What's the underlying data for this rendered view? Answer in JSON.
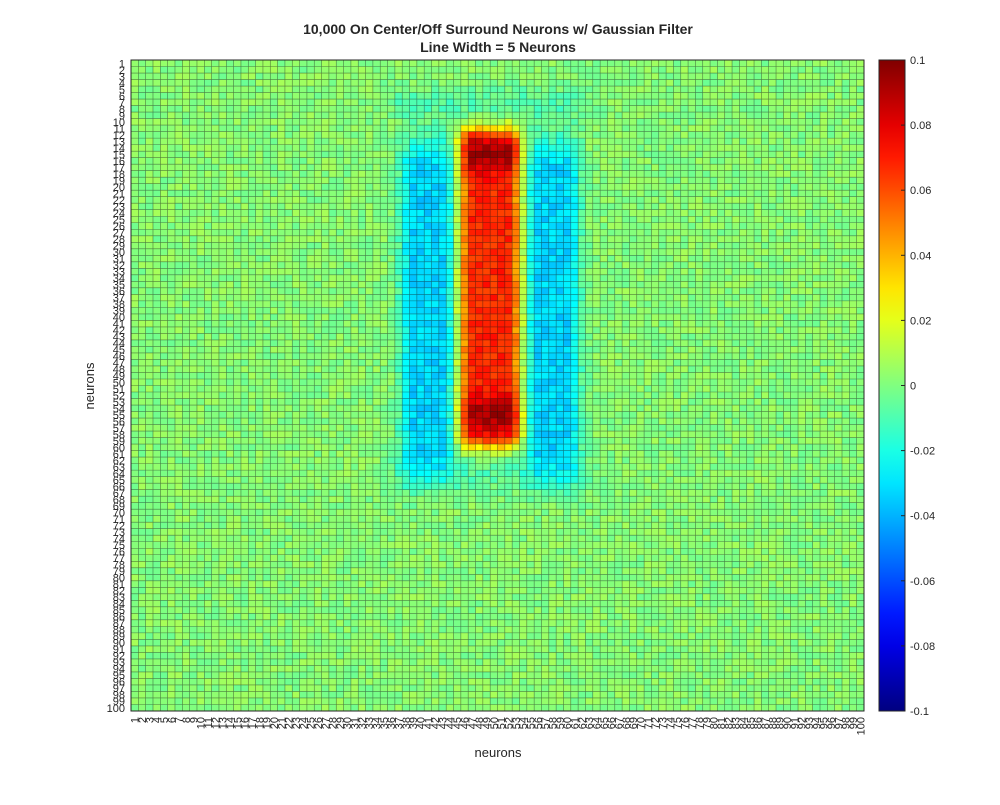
{
  "chart_data": {
    "type": "heatmap",
    "title": "10,000 On Center/Off Surround Neurons w/ Gaussian Filter",
    "subtitle": "Line Width = 5 Neurons",
    "xlabel": "neurons",
    "ylabel": "neurons",
    "rows": 100,
    "cols": 100,
    "x_tick_labels": [
      "1",
      "2",
      "3",
      "4",
      "5",
      "6",
      "7",
      "8",
      "9",
      "10",
      "11",
      "12",
      "13",
      "14",
      "15",
      "16",
      "17",
      "18",
      "19",
      "20",
      "21",
      "22",
      "23",
      "24",
      "25",
      "26",
      "27",
      "28",
      "29",
      "30",
      "31",
      "32",
      "33",
      "34",
      "35",
      "36",
      "37",
      "38",
      "39",
      "40",
      "41",
      "42",
      "43",
      "44",
      "45",
      "46",
      "47",
      "48",
      "49",
      "50",
      "51",
      "52",
      "53",
      "54",
      "55",
      "56",
      "57",
      "58",
      "59",
      "60",
      "61",
      "62",
      "63",
      "64",
      "65",
      "66",
      "67",
      "68",
      "69",
      "70",
      "71",
      "72",
      "73",
      "74",
      "75",
      "76",
      "77",
      "78",
      "79",
      "80",
      "81",
      "82",
      "83",
      "84",
      "85",
      "86",
      "87",
      "88",
      "89",
      "90",
      "91",
      "92",
      "93",
      "94",
      "95",
      "96",
      "97",
      "98",
      "99",
      "100"
    ],
    "y_tick_labels": [
      "1",
      "2",
      "3",
      "4",
      "5",
      "6",
      "7",
      "8",
      "9",
      "10",
      "11",
      "12",
      "13",
      "14",
      "15",
      "16",
      "17",
      "18",
      "19",
      "20",
      "21",
      "22",
      "23",
      "24",
      "25",
      "26",
      "27",
      "28",
      "29",
      "30",
      "31",
      "32",
      "33",
      "34",
      "35",
      "36",
      "37",
      "38",
      "39",
      "40",
      "41",
      "42",
      "43",
      "44",
      "45",
      "46",
      "47",
      "48",
      "49",
      "50",
      "51",
      "52",
      "53",
      "54",
      "55",
      "56",
      "57",
      "58",
      "59",
      "60",
      "61",
      "62",
      "63",
      "64",
      "65",
      "66",
      "67",
      "68",
      "69",
      "70",
      "71",
      "72",
      "73",
      "74",
      "75",
      "76",
      "77",
      "78",
      "79",
      "80",
      "81",
      "82",
      "83",
      "84",
      "85",
      "86",
      "87",
      "88",
      "89",
      "90",
      "91",
      "92",
      "93",
      "94",
      "95",
      "96",
      "97",
      "98",
      "99",
      "100"
    ],
    "colorbar": {
      "range": [
        -0.1,
        0.1
      ],
      "ticks": [
        0.1,
        0.08,
        0.06,
        0.04,
        0.02,
        0,
        -0.02,
        -0.04,
        -0.06,
        -0.08,
        -0.1
      ],
      "tick_labels": [
        "0.1",
        "0.08",
        "0.06",
        "0.04",
        "0.02",
        "0",
        "-0.02",
        "-0.04",
        "-0.06",
        "-0.08",
        "-0.1"
      ],
      "colormap": "jet"
    },
    "structure": {
      "background_value": 0.002,
      "noise_amplitude": 0.006,
      "on_center": {
        "cols": [
          46,
          53
        ],
        "rows": [
          12,
          60
        ],
        "peak_value": 0.09,
        "peak_rows": [
          15,
          55
        ],
        "mid_value": 0.065
      },
      "off_surround_left": {
        "cols": [
          38,
          44
        ],
        "rows": [
          12,
          61
        ],
        "value": -0.035
      },
      "off_surround_right": {
        "cols": [
          55,
          61
        ],
        "rows": [
          12,
          61
        ],
        "value": -0.035
      },
      "halo_top_bottom": {
        "value": -0.01
      }
    }
  }
}
